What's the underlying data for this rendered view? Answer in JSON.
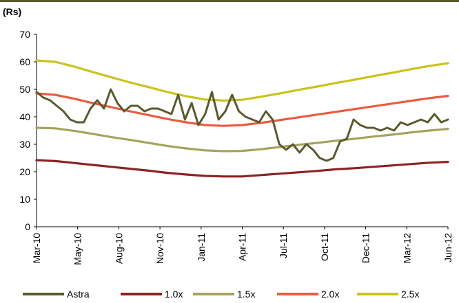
{
  "chart_data": {
    "type": "line",
    "ylabel": "(Rs)",
    "ylim": [
      0,
      70
    ],
    "yticks": [
      "0",
      "10",
      "20",
      "30",
      "40",
      "50",
      "60",
      "70"
    ],
    "x_tick_labels": [
      "Mar-10",
      "May-10",
      "Aug-10",
      "Nov-10",
      "Jan-11",
      "Apr-11",
      "Jul-11",
      "Oct-11",
      "Dec-11",
      "Mar-12",
      "Jun-12"
    ],
    "grid": false,
    "legend_position": "bottom",
    "series": [
      {
        "name": "Astra",
        "color": "#5a5a2e",
        "values": [
          49,
          47,
          46,
          44,
          42,
          39,
          38,
          38,
          43,
          46,
          43,
          50,
          45,
          42,
          44,
          44,
          42,
          43,
          43,
          42,
          41,
          48,
          39,
          45,
          37,
          41,
          49,
          39,
          42,
          48,
          42,
          40,
          39,
          38,
          42,
          39,
          30,
          28,
          30,
          27,
          30,
          28,
          25,
          24,
          25,
          31,
          32,
          39,
          37,
          36,
          36,
          35,
          36,
          35,
          38,
          37,
          38,
          39,
          38,
          41,
          38,
          39
        ]
      },
      {
        "name": "1.0x",
        "color": "#8c2323",
        "values": [
          24.2,
          23.9,
          23.2,
          22.5,
          21.8,
          21.1,
          20.4,
          19.6,
          19.0,
          18.5,
          18.3,
          18.3,
          18.8,
          19.3,
          19.8,
          20.3,
          20.9,
          21.3,
          21.8,
          22.3,
          22.8,
          23.3,
          23.6
        ]
      },
      {
        "name": "1.5x",
        "color": "#a6a25e",
        "values": [
          36.0,
          35.8,
          34.9,
          33.8,
          32.6,
          31.6,
          30.5,
          29.4,
          28.5,
          27.8,
          27.5,
          27.6,
          28.2,
          29.0,
          29.8,
          30.5,
          31.3,
          32.0,
          32.8,
          33.5,
          34.3,
          35.0,
          35.6
        ]
      },
      {
        "name": "2.0x",
        "color": "#ea5b3f",
        "values": [
          48.5,
          48.0,
          46.6,
          45.0,
          43.5,
          42.0,
          40.6,
          39.2,
          38.0,
          37.0,
          36.7,
          37.0,
          37.8,
          38.8,
          39.8,
          40.8,
          41.8,
          42.8,
          43.8,
          44.8,
          45.8,
          46.8,
          47.6
        ]
      },
      {
        "name": "2.5x",
        "color": "#cbc21e",
        "values": [
          60.5,
          60.0,
          58.3,
          56.3,
          54.4,
          52.5,
          50.8,
          49.0,
          47.5,
          46.3,
          45.9,
          46.2,
          47.3,
          48.5,
          49.8,
          51.0,
          52.3,
          53.5,
          54.8,
          56.0,
          57.3,
          58.5,
          59.5
        ]
      }
    ]
  }
}
